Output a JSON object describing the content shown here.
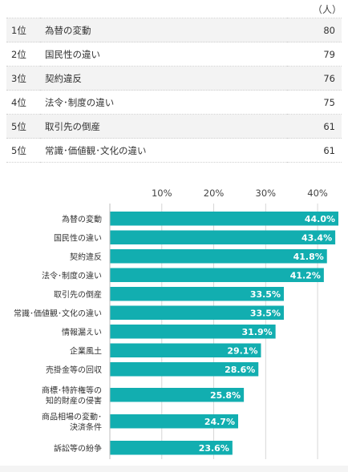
{
  "unit_label": "（人）",
  "ranking": [
    {
      "rank": "1位",
      "label": "為替の変動",
      "value": "80"
    },
    {
      "rank": "2位",
      "label": "国民性の違い",
      "value": "79"
    },
    {
      "rank": "3位",
      "label": "契約違反",
      "value": "76"
    },
    {
      "rank": "4位",
      "label": "法令･制度の違い",
      "value": "75"
    },
    {
      "rank": "5位",
      "label": "取引先の倒産",
      "value": "61"
    },
    {
      "rank": "5位",
      "label": "常識･価値観･文化の違い",
      "value": "61"
    }
  ],
  "chart_data": {
    "type": "bar",
    "orientation": "horizontal",
    "categories": [
      [
        "為替の変動"
      ],
      [
        "国民性の違い"
      ],
      [
        "契約違反"
      ],
      [
        "法令･制度の違い"
      ],
      [
        "取引先の倒産"
      ],
      [
        "常識･価値観･文化の違い"
      ],
      [
        "情報漏えい"
      ],
      [
        "企業風土"
      ],
      [
        "売掛金等の回収"
      ],
      [
        "商標･特許権等の",
        "知的財産の侵害"
      ],
      [
        "商品相場の変動･",
        "決済条件"
      ],
      [
        "訴訟等の紛争"
      ]
    ],
    "values": [
      44.0,
      43.4,
      41.8,
      41.2,
      33.5,
      33.5,
      31.9,
      29.1,
      28.6,
      25.8,
      24.7,
      23.6
    ],
    "value_labels": [
      "44.0%",
      "43.4%",
      "41.8%",
      "41.2%",
      "33.5%",
      "33.5%",
      "31.9%",
      "29.1%",
      "28.6%",
      "25.8%",
      "24.7%",
      "23.6%"
    ],
    "ticks": [
      10,
      20,
      30,
      40
    ],
    "tick_labels": [
      "10%",
      "20%",
      "30%",
      "40%"
    ],
    "xlim": [
      0,
      44.0
    ],
    "grid": true,
    "bar_color": "#12aeb0"
  }
}
